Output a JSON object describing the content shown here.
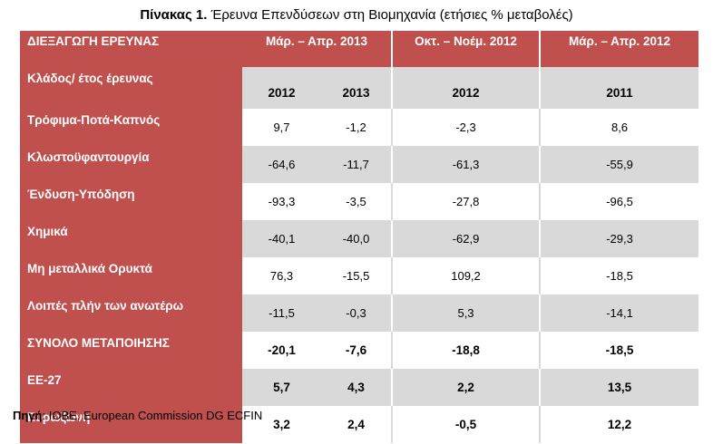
{
  "title": {
    "prefix": "Πίνακας 1.",
    "text": " Έρευνα Επενδύσεων στη Βιομηχανία (ετήσιες % μεταβολές)"
  },
  "table": {
    "corner_label": "ΔΙΕΞΑΓΩΓΗ ΕΡΕΥΝΑΣ",
    "periods": [
      "Μάρ. – Απρ. 2013",
      "Οκτ. – Νοέμ. 2012",
      "Μάρ. – Απρ. 2012"
    ],
    "year_row": {
      "label": "Κλάδος/ έτος έρευνας",
      "values": [
        "2012",
        "2013",
        "2012",
        "2011"
      ]
    },
    "rows": [
      {
        "label": "Τρόφιμα-Ποτά-Καπνός",
        "values": [
          "9,7",
          "-1,2",
          "-2,3",
          "8,6"
        ]
      },
      {
        "label": "Κλωστοϋφαντουργία",
        "values": [
          "-64,6",
          "-11,7",
          "-61,3",
          "-55,9"
        ]
      },
      {
        "label": "Ένδυση-Υπόδηση",
        "values": [
          "-93,3",
          "-3,5",
          "-27,8",
          "-96,5"
        ]
      },
      {
        "label": "Χημικά",
        "values": [
          "-40,1",
          "-40,0",
          "-62,9",
          "-29,3"
        ]
      },
      {
        "label": "Μη μεταλλικά Ορυκτά",
        "values": [
          "76,3",
          "-15,5",
          "109,2",
          "-18,5"
        ]
      },
      {
        "label": "Λοιπές πλήν των ανωτέρω",
        "values": [
          "-11,5",
          "-0,3",
          "5,3",
          "-14,1"
        ]
      },
      {
        "label": "ΣΥΝΟΛΟ ΜΕΤΑΠΟΙΗΣΗΣ",
        "values": [
          "-20,1",
          "-7,6",
          "-18,8",
          "-18,5"
        ]
      },
      {
        "label": "ΕΕ-27",
        "values": [
          "5,7",
          "4,3",
          "2,2",
          "13,5"
        ]
      },
      {
        "label": "Ευρωζώνη",
        "values": [
          "3,2",
          "2,4",
          "-0,5",
          "12,2"
        ]
      }
    ]
  },
  "source": {
    "label": "Πηγή",
    "text": ": IOBE, European Commission DG ECFIN"
  },
  "colors": {
    "header_red": "#c0504d",
    "band_grey": "#d9d9d9",
    "text_white": "#ffffff"
  }
}
